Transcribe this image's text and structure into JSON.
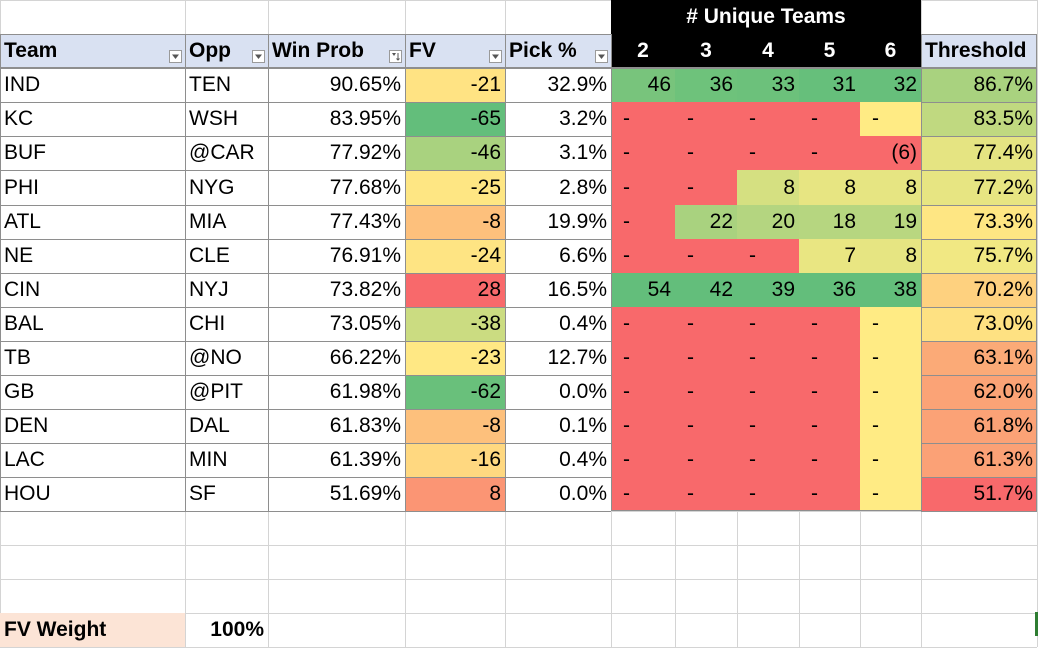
{
  "headers": {
    "team": "Team",
    "opp": "Opp",
    "win_prob": "Win Prob",
    "fv": "FV",
    "pick_pct": "Pick %",
    "unique_teams": "# Unique Teams",
    "counts": [
      "2",
      "3",
      "4",
      "5",
      "6"
    ],
    "threshold": "Threshold"
  },
  "rows": [
    {
      "team": "IND",
      "opp": "TEN",
      "win_prob": "90.65%",
      "fv": "-21",
      "pick_pct": "32.9%",
      "u": [
        "46",
        "36",
        "33",
        "31",
        "32"
      ],
      "threshold": "86.7%"
    },
    {
      "team": "KC",
      "opp": "WSH",
      "win_prob": "83.95%",
      "fv": "-65",
      "pick_pct": "3.2%",
      "u": [
        "-",
        "-",
        "-",
        "-",
        "-"
      ],
      "threshold": "83.5%"
    },
    {
      "team": "BUF",
      "opp": "@CAR",
      "win_prob": "77.92%",
      "fv": "-46",
      "pick_pct": "3.1%",
      "u": [
        "-",
        "-",
        "-",
        "-",
        "(6)"
      ],
      "threshold": "77.4%"
    },
    {
      "team": "PHI",
      "opp": "NYG",
      "win_prob": "77.68%",
      "fv": "-25",
      "pick_pct": "2.8%",
      "u": [
        "-",
        "-",
        "8",
        "8",
        "8"
      ],
      "threshold": "77.2%"
    },
    {
      "team": "ATL",
      "opp": "MIA",
      "win_prob": "77.43%",
      "fv": "-8",
      "pick_pct": "19.9%",
      "u": [
        "-",
        "22",
        "20",
        "18",
        "19"
      ],
      "threshold": "73.3%"
    },
    {
      "team": "NE",
      "opp": "CLE",
      "win_prob": "76.91%",
      "fv": "-24",
      "pick_pct": "6.6%",
      "u": [
        "-",
        "-",
        "-",
        "7",
        "8"
      ],
      "threshold": "75.7%"
    },
    {
      "team": "CIN",
      "opp": "NYJ",
      "win_prob": "73.82%",
      "fv": "28",
      "pick_pct": "16.5%",
      "u": [
        "54",
        "42",
        "39",
        "36",
        "38"
      ],
      "threshold": "70.2%"
    },
    {
      "team": "BAL",
      "opp": "CHI",
      "win_prob": "73.05%",
      "fv": "-38",
      "pick_pct": "0.4%",
      "u": [
        "-",
        "-",
        "-",
        "-",
        "-"
      ],
      "threshold": "73.0%"
    },
    {
      "team": "TB",
      "opp": "@NO",
      "win_prob": "66.22%",
      "fv": "-23",
      "pick_pct": "12.7%",
      "u": [
        "-",
        "-",
        "-",
        "-",
        "-"
      ],
      "threshold": "63.1%"
    },
    {
      "team": "GB",
      "opp": "@PIT",
      "win_prob": "61.98%",
      "fv": "-62",
      "pick_pct": "0.0%",
      "u": [
        "-",
        "-",
        "-",
        "-",
        "-"
      ],
      "threshold": "62.0%"
    },
    {
      "team": "DEN",
      "opp": "DAL",
      "win_prob": "61.83%",
      "fv": "-8",
      "pick_pct": "0.1%",
      "u": [
        "-",
        "-",
        "-",
        "-",
        "-"
      ],
      "threshold": "61.8%"
    },
    {
      "team": "LAC",
      "opp": "MIN",
      "win_prob": "61.39%",
      "fv": "-16",
      "pick_pct": "0.4%",
      "u": [
        "-",
        "-",
        "-",
        "-",
        "-"
      ],
      "threshold": "61.3%"
    },
    {
      "team": "HOU",
      "opp": "SF",
      "win_prob": "51.69%",
      "fv": "8",
      "pick_pct": "0.0%",
      "u": [
        "-",
        "-",
        "-",
        "-",
        "-"
      ],
      "threshold": "51.7%"
    }
  ],
  "fv_weight": {
    "label": "FV Weight",
    "value": "100%"
  },
  "colors": {
    "header_fill": "#d9e1f2",
    "black_header": "#000000",
    "fv_weight_fill": "#fce4d6",
    "fv": [
      "#ffe383",
      "#63be7b",
      "#a9d27f",
      "#fee683",
      "#fdc07c",
      "#fee483",
      "#f8696b",
      "#cbdc81",
      "#ffe884",
      "#69c07b",
      "#fdc07c",
      "#ffd880",
      "#fb9574"
    ],
    "u": [
      [
        "#78c47c",
        "#6ec27b",
        "#6cc17b",
        "#66bf7b",
        "#67bf7b"
      ],
      [
        "#f8696b",
        "#f8696b",
        "#f8696b",
        "#f8696b",
        "#ffeb84"
      ],
      [
        "#f8696b",
        "#f8696b",
        "#f8696b",
        "#f8696b",
        "#f8696b"
      ],
      [
        "#f8696b",
        "#f8696b",
        "#d5e081",
        "#e7e582",
        "#e6e582"
      ],
      [
        "#f8696b",
        "#a9d27f",
        "#b4d580",
        "#b6d680",
        "#b9d780"
      ],
      [
        "#f8696b",
        "#f8696b",
        "#f8696b",
        "#e9e682",
        "#e6e582"
      ],
      [
        "#63be7b",
        "#63be7b",
        "#63be7b",
        "#63be7b",
        "#63be7b"
      ],
      [
        "#f8696b",
        "#f8696b",
        "#f8696b",
        "#f8696b",
        "#ffeb84"
      ],
      [
        "#f8696b",
        "#f8696b",
        "#f8696b",
        "#f8696b",
        "#ffeb84"
      ],
      [
        "#f8696b",
        "#f8696b",
        "#f8696b",
        "#f8696b",
        "#ffeb84"
      ],
      [
        "#f8696b",
        "#f8696b",
        "#f8696b",
        "#f8696b",
        "#ffeb84"
      ],
      [
        "#f8696b",
        "#f8696b",
        "#f8696b",
        "#f8696b",
        "#ffeb84"
      ],
      [
        "#f8696b",
        "#f8696b",
        "#f8696b",
        "#f8696b",
        "#ffeb84"
      ]
    ],
    "threshold": [
      "#a9d27f",
      "#c0d980",
      "#e5e482",
      "#e7e582",
      "#fee683",
      "#f1e883",
      "#fed17f",
      "#fee182",
      "#fbaa77",
      "#fba376",
      "#fba276",
      "#fba176",
      "#f8696b"
    ]
  },
  "icons": {
    "filter": "filter-dropdown-icon",
    "sort": "sort-descending-icon"
  }
}
